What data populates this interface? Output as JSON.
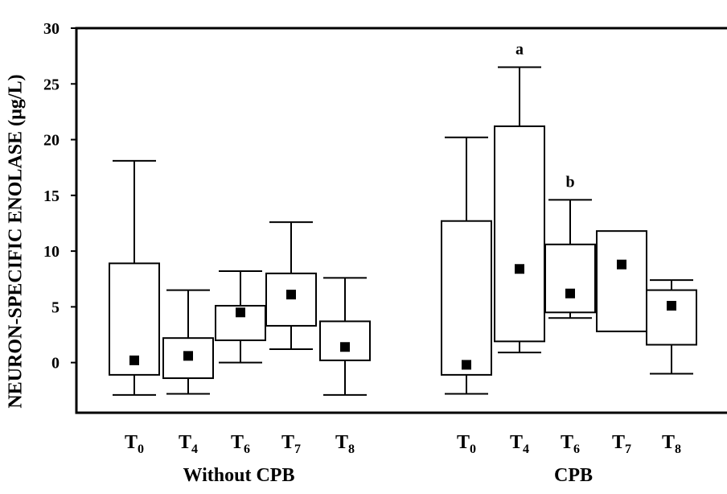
{
  "chart_data": {
    "type": "box",
    "ylabel": "NEURON-SPECIFIC ENOLASE (µg/L)",
    "ylim": [
      -4.5,
      30
    ],
    "yticks": [
      0,
      5,
      10,
      15,
      20,
      25,
      30
    ],
    "groups": [
      {
        "name": "Without CPB",
        "boxes": [
          {
            "label": "T",
            "sub": "0",
            "whisker_low": -2.9,
            "q1": -1.1,
            "q3": 8.9,
            "whisker_high": 18.1,
            "mean": 0.2
          },
          {
            "label": "T",
            "sub": "4",
            "whisker_low": -2.8,
            "q1": -1.4,
            "q3": 2.2,
            "whisker_high": 6.5,
            "mean": 0.6
          },
          {
            "label": "T",
            "sub": "6",
            "whisker_low": 0.0,
            "q1": 2.0,
            "q3": 5.1,
            "whisker_high": 8.2,
            "mean": 4.5
          },
          {
            "label": "T",
            "sub": "7",
            "whisker_low": 1.2,
            "q1": 3.3,
            "q3": 8.0,
            "whisker_high": 12.6,
            "mean": 6.1
          },
          {
            "label": "T",
            "sub": "8",
            "whisker_low": -2.9,
            "q1": 0.2,
            "q3": 3.7,
            "whisker_high": 7.6,
            "mean": 1.4
          }
        ]
      },
      {
        "name": "CPB",
        "boxes": [
          {
            "label": "T",
            "sub": "0",
            "whisker_low": -2.8,
            "q1": -1.1,
            "q3": 12.7,
            "whisker_high": 20.2,
            "mean": -0.2
          },
          {
            "label": "T",
            "sub": "4",
            "whisker_low": 0.9,
            "q1": 1.9,
            "q3": 21.2,
            "whisker_high": 26.5,
            "mean": 8.4,
            "annotation": "a"
          },
          {
            "label": "T",
            "sub": "6",
            "whisker_low": 4.0,
            "q1": 4.5,
            "q3": 10.6,
            "whisker_high": 14.6,
            "mean": 6.2,
            "annotation": "b"
          },
          {
            "label": "T",
            "sub": "7",
            "whisker_low": 2.8,
            "q1": 2.8,
            "q3": 11.8,
            "whisker_high": 11.8,
            "mean": 8.8
          },
          {
            "label": "T",
            "sub": "8",
            "whisker_low": -1.0,
            "q1": 1.6,
            "q3": 6.5,
            "whisker_high": 7.4,
            "mean": 5.1
          }
        ]
      }
    ],
    "grid": false,
    "legend": "none"
  }
}
